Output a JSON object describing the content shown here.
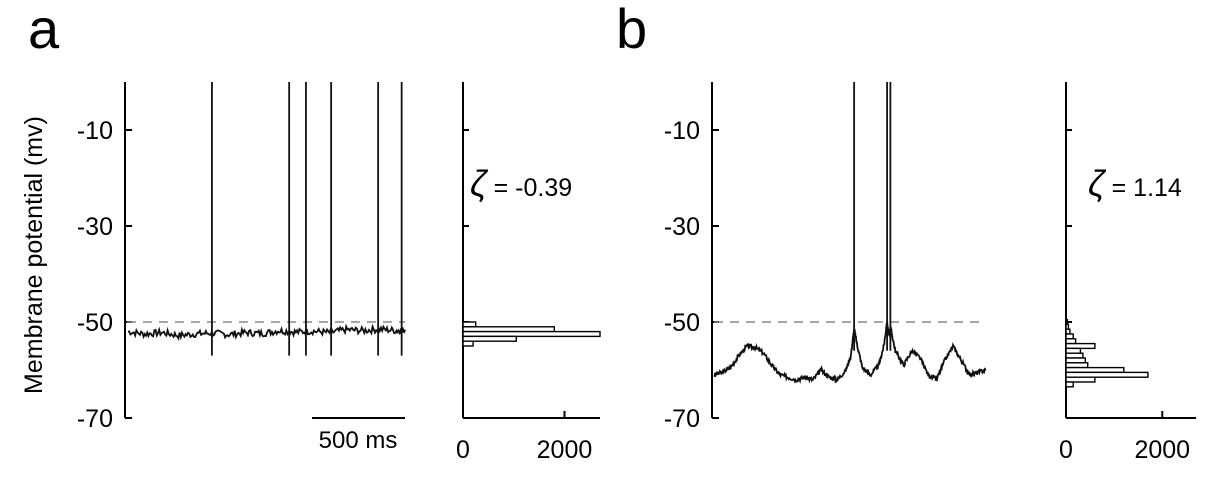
{
  "panel_labels": {
    "a": "a",
    "b": "b"
  },
  "ylabel": "Membrane potential (mv)",
  "scale_bar_label": "500 ms",
  "threshold_mv": -50,
  "chart_data": [
    {
      "panel": "a",
      "type": "line",
      "title": "",
      "xlabel": "",
      "ylabel": "Membrane potential (mv)",
      "ylim": [
        -70,
        0
      ],
      "yticks": [
        -10,
        -30,
        -50,
        -70
      ],
      "grid": false,
      "scale_bar": {
        "label": "500 ms",
        "duration_ms": 500
      },
      "duration_ms": 1650,
      "threshold_mv": -50,
      "spike_times_ms": [
        500,
        960,
        1060,
        1210,
        1490,
        1630
      ],
      "trace_points": {
        "x_ms": [
          0,
          100,
          200,
          300,
          400,
          500,
          600,
          700,
          800,
          900,
          1000,
          1100,
          1200,
          1300,
          1400,
          1500,
          1600,
          1650
        ],
        "y_mv": [
          -52,
          -52.5,
          -52.2,
          -52.8,
          -52.5,
          -52.3,
          -52.6,
          -52.2,
          -52.4,
          -51.8,
          -52.1,
          -51.9,
          -52.2,
          -51.6,
          -51.8,
          -51.5,
          -51.8,
          -51.6
        ]
      }
    },
    {
      "panel": "a-hist",
      "type": "bar",
      "orientation": "horizontal",
      "xticks": [
        0,
        2000
      ],
      "xlim": [
        0,
        2700
      ],
      "bins_mv": [
        -50.5,
        -51.5,
        -52.5,
        -53.5,
        -54.5
      ],
      "counts": [
        250,
        1800,
        2700,
        1050,
        200
      ],
      "annotation": {
        "symbol": "ζ",
        "text": " = -0.39",
        "value": -0.39
      }
    },
    {
      "panel": "b",
      "type": "line",
      "title": "",
      "xlabel": "",
      "ylabel": "",
      "ylim": [
        -70,
        0
      ],
      "yticks": [
        -10,
        -30,
        -50,
        -70
      ],
      "grid": false,
      "duration_ms": 1650,
      "threshold_mv": -50,
      "spike_times_ms": [
        850,
        1050,
        1070
      ],
      "trace_points": {
        "x_ms": [
          0,
          50,
          100,
          150,
          200,
          250,
          300,
          350,
          400,
          450,
          500,
          550,
          600,
          650,
          700,
          750,
          800,
          830,
          850,
          870,
          900,
          950,
          1000,
          1030,
          1050,
          1060,
          1070,
          1100,
          1150,
          1200,
          1250,
          1300,
          1350,
          1400,
          1450,
          1500,
          1550,
          1600,
          1650
        ],
        "y_mv": [
          -61,
          -60.5,
          -59.5,
          -57,
          -55,
          -55.3,
          -56.5,
          -59,
          -61,
          -61.5,
          -62,
          -61.5,
          -62,
          -60,
          -61.5,
          -62,
          -60,
          -57,
          -51.5,
          -55,
          -59.5,
          -61,
          -59,
          -55,
          -50,
          -53,
          -51,
          -56,
          -59,
          -56,
          -57.5,
          -61,
          -62,
          -58,
          -55,
          -58,
          -61,
          -60.5,
          -60
        ]
      }
    },
    {
      "panel": "b-hist",
      "type": "bar",
      "orientation": "horizontal",
      "xticks": [
        0,
        2000
      ],
      "xlim": [
        0,
        2700
      ],
      "bins_mv": [
        -50,
        -51,
        -52,
        -53,
        -54,
        -55,
        -56,
        -57,
        -58,
        -59,
        -60,
        -61,
        -62,
        -63
      ],
      "counts": [
        30,
        50,
        80,
        150,
        200,
        600,
        300,
        350,
        400,
        450,
        1200,
        1700,
        600,
        150
      ],
      "annotation": {
        "symbol": "ζ",
        "text": " = 1.14",
        "value": 1.14
      }
    }
  ]
}
